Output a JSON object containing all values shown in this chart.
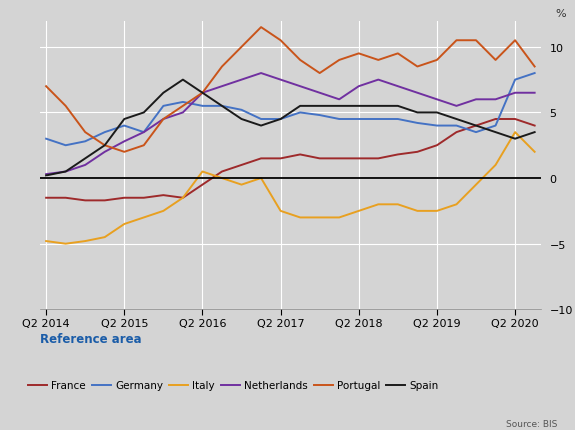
{
  "ylabel": "%",
  "source": "Source: BIS",
  "background_color": "#d4d4d4",
  "zero_line_color": "#000000",
  "grid_color": "#ffffff",
  "legend_label_color": "#1a5ca8",
  "legend_title": "Reference area",
  "ylim": [
    -10,
    12
  ],
  "yticks": [
    -10,
    -5,
    0,
    5,
    10
  ],
  "xtick_labels": [
    "Q2 2014",
    "Q2 2015",
    "Q2 2016",
    "Q2 2017",
    "Q2 2018",
    "Q2 2019",
    "Q2 2020"
  ],
  "xtick_positions": [
    0,
    4,
    8,
    12,
    16,
    20,
    24
  ],
  "series": {
    "France": {
      "color": "#9e2a2b",
      "data": [
        -1.5,
        -1.5,
        -1.7,
        -1.7,
        -1.5,
        -1.5,
        -1.3,
        -1.5,
        -0.5,
        0.5,
        1.0,
        1.5,
        1.5,
        1.8,
        1.5,
        1.5,
        1.5,
        1.5,
        1.8,
        2.0,
        2.5,
        3.5,
        4.0,
        4.5,
        4.5,
        4.0
      ]
    },
    "Germany": {
      "color": "#4472c4",
      "data": [
        3.0,
        2.5,
        2.8,
        3.5,
        4.0,
        3.5,
        5.5,
        5.8,
        5.5,
        5.5,
        5.2,
        4.5,
        4.5,
        5.0,
        4.8,
        4.5,
        4.5,
        4.5,
        4.5,
        4.2,
        4.0,
        4.0,
        3.5,
        4.0,
        7.5,
        8.0
      ]
    },
    "Italy": {
      "color": "#e8a020",
      "data": [
        -4.8,
        -5.0,
        -4.8,
        -4.5,
        -3.5,
        -3.0,
        -2.5,
        -1.5,
        0.5,
        0.0,
        -0.5,
        0.0,
        -2.5,
        -3.0,
        -3.0,
        -3.0,
        -2.5,
        -2.0,
        -2.0,
        -2.5,
        -2.5,
        -2.0,
        -0.5,
        1.0,
        3.5,
        2.0
      ]
    },
    "Netherlands": {
      "color": "#7030a0",
      "data": [
        0.3,
        0.5,
        1.0,
        2.0,
        2.8,
        3.5,
        4.5,
        5.0,
        6.5,
        7.0,
        7.5,
        8.0,
        7.5,
        7.0,
        6.5,
        6.0,
        7.0,
        7.5,
        7.0,
        6.5,
        6.0,
        5.5,
        6.0,
        6.0,
        6.5,
        6.5
      ]
    },
    "Portugal": {
      "color": "#c9541a",
      "data": [
        7.0,
        5.5,
        3.5,
        2.5,
        2.0,
        2.5,
        4.5,
        5.5,
        6.5,
        8.5,
        10.0,
        11.5,
        10.5,
        9.0,
        8.0,
        9.0,
        9.5,
        9.0,
        9.5,
        8.5,
        9.0,
        10.5,
        10.5,
        9.0,
        10.5,
        8.5
      ]
    },
    "Spain": {
      "color": "#1a1a1a",
      "data": [
        0.2,
        0.5,
        1.5,
        2.5,
        4.5,
        5.0,
        6.5,
        7.5,
        6.5,
        5.5,
        4.5,
        4.0,
        4.5,
        5.5,
        5.5,
        5.5,
        5.5,
        5.5,
        5.5,
        5.0,
        5.0,
        4.5,
        4.0,
        3.5,
        3.0,
        3.5
      ]
    }
  }
}
